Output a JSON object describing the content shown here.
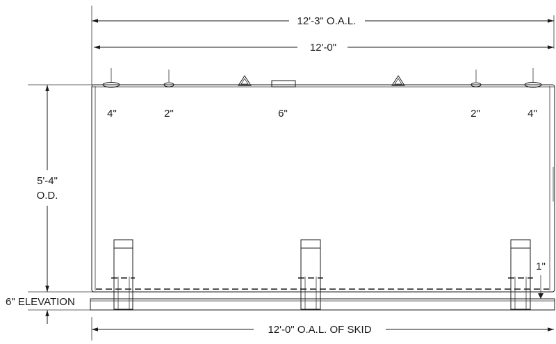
{
  "dimensions": {
    "overall_length": "12'-3\" O.A.L.",
    "tank_length": "12'-0\"",
    "diameter_line1": "5'-4\"",
    "diameter_line2": "O.D.",
    "elevation": "6\" ELEVATION",
    "skid_length": "12'-0\" O.A.L. OF SKID",
    "skid_gap": "1\""
  },
  "fittings": [
    {
      "size": "4\""
    },
    {
      "size": "2\""
    },
    {
      "size": "6\""
    },
    {
      "size": "2\""
    },
    {
      "size": "4\""
    }
  ]
}
